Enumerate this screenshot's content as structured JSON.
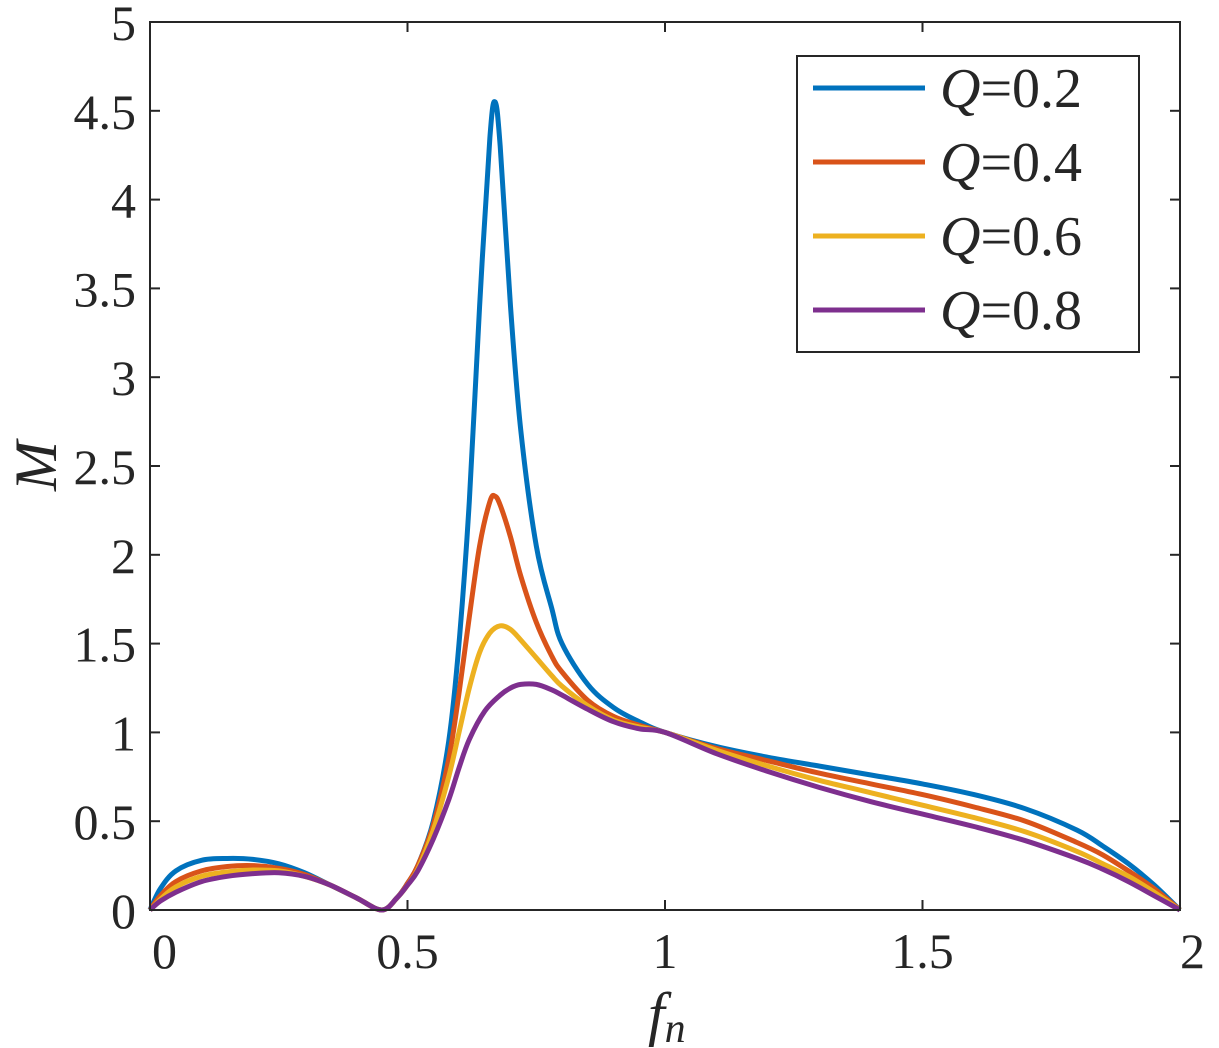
{
  "chart_data": {
    "type": "line",
    "xlabel": "f",
    "xlabel_sub": "n",
    "ylabel": "M",
    "xlim": [
      0,
      2
    ],
    "ylim": [
      0,
      5
    ],
    "xticks": [
      0,
      0.5,
      1,
      1.5,
      2
    ],
    "xtick_labels": [
      "0",
      "0.5",
      "1",
      "1.5",
      "2"
    ],
    "yticks": [
      0,
      0.5,
      1,
      1.5,
      2,
      2.5,
      3,
      3.5,
      4,
      4.5,
      5
    ],
    "ytick_labels": [
      "0",
      "0.5",
      "1",
      "1.5",
      "2",
      "2.5",
      "3",
      "3.5",
      "4",
      "4.5",
      "5"
    ],
    "grid": false,
    "legend_position": "top-right",
    "series": [
      {
        "name": "=0.2",
        "name_prefix": "Q",
        "color": "#0072BD",
        "x": [
          0,
          0.02,
          0.05,
          0.1,
          0.15,
          0.2,
          0.25,
          0.3,
          0.35,
          0.4,
          0.45,
          0.48,
          0.5,
          0.52,
          0.55,
          0.58,
          0.6,
          0.62,
          0.64,
          0.66,
          0.67,
          0.68,
          0.7,
          0.72,
          0.75,
          0.78,
          0.8,
          0.85,
          0.9,
          0.95,
          1.0,
          1.1,
          1.2,
          1.3,
          1.4,
          1.5,
          1.6,
          1.7,
          1.8,
          1.85,
          1.9,
          1.95,
          2.0
        ],
        "y": [
          0,
          0.12,
          0.22,
          0.28,
          0.29,
          0.285,
          0.26,
          0.21,
          0.14,
          0.07,
          0,
          0.07,
          0.15,
          0.25,
          0.5,
          0.95,
          1.5,
          2.3,
          3.4,
          4.35,
          4.55,
          4.3,
          3.4,
          2.7,
          2.05,
          1.7,
          1.5,
          1.27,
          1.14,
          1.06,
          1.0,
          0.92,
          0.86,
          0.81,
          0.76,
          0.71,
          0.65,
          0.57,
          0.45,
          0.36,
          0.26,
          0.14,
          0
        ]
      },
      {
        "name": "=0.4",
        "name_prefix": "Q",
        "color": "#D95319",
        "x": [
          0,
          0.02,
          0.05,
          0.1,
          0.15,
          0.2,
          0.25,
          0.3,
          0.35,
          0.4,
          0.45,
          0.48,
          0.5,
          0.52,
          0.55,
          0.58,
          0.6,
          0.62,
          0.64,
          0.66,
          0.67,
          0.68,
          0.7,
          0.72,
          0.75,
          0.78,
          0.8,
          0.85,
          0.9,
          0.95,
          1.0,
          1.1,
          1.2,
          1.3,
          1.4,
          1.5,
          1.6,
          1.7,
          1.8,
          1.85,
          1.9,
          1.95,
          2.0
        ],
        "y": [
          0,
          0.08,
          0.16,
          0.22,
          0.245,
          0.25,
          0.235,
          0.2,
          0.14,
          0.07,
          0,
          0.07,
          0.15,
          0.25,
          0.48,
          0.85,
          1.22,
          1.65,
          2.05,
          2.3,
          2.33,
          2.28,
          2.1,
          1.88,
          1.62,
          1.43,
          1.34,
          1.18,
          1.09,
          1.04,
          1.0,
          0.91,
          0.84,
          0.77,
          0.71,
          0.65,
          0.58,
          0.5,
          0.38,
          0.31,
          0.22,
          0.12,
          0
        ]
      },
      {
        "name": "=0.6",
        "name_prefix": "Q",
        "color": "#EDB120",
        "x": [
          0,
          0.02,
          0.05,
          0.1,
          0.15,
          0.2,
          0.25,
          0.3,
          0.35,
          0.4,
          0.45,
          0.48,
          0.5,
          0.52,
          0.55,
          0.58,
          0.6,
          0.62,
          0.64,
          0.66,
          0.68,
          0.7,
          0.72,
          0.75,
          0.78,
          0.8,
          0.85,
          0.9,
          0.95,
          1.0,
          1.1,
          1.2,
          1.3,
          1.4,
          1.5,
          1.6,
          1.7,
          1.8,
          1.85,
          1.9,
          1.95,
          2.0
        ],
        "y": [
          0,
          0.06,
          0.13,
          0.19,
          0.215,
          0.225,
          0.22,
          0.19,
          0.14,
          0.07,
          0,
          0.07,
          0.14,
          0.23,
          0.45,
          0.75,
          1.0,
          1.25,
          1.45,
          1.56,
          1.6,
          1.58,
          1.52,
          1.42,
          1.32,
          1.26,
          1.15,
          1.07,
          1.03,
          1.0,
          0.9,
          0.81,
          0.73,
          0.66,
          0.59,
          0.52,
          0.44,
          0.33,
          0.26,
          0.19,
          0.1,
          0
        ]
      },
      {
        "name": "=0.8",
        "name_prefix": "Q",
        "color": "#7E2F8E",
        "x": [
          0,
          0.02,
          0.05,
          0.1,
          0.15,
          0.2,
          0.25,
          0.3,
          0.35,
          0.4,
          0.45,
          0.48,
          0.5,
          0.52,
          0.55,
          0.58,
          0.6,
          0.62,
          0.65,
          0.68,
          0.7,
          0.72,
          0.75,
          0.78,
          0.8,
          0.85,
          0.9,
          0.95,
          1.0,
          1.1,
          1.2,
          1.3,
          1.4,
          1.5,
          1.6,
          1.7,
          1.8,
          1.85,
          1.9,
          1.95,
          2.0
        ],
        "y": [
          0,
          0.05,
          0.1,
          0.16,
          0.19,
          0.205,
          0.21,
          0.19,
          0.14,
          0.07,
          0,
          0.07,
          0.14,
          0.22,
          0.4,
          0.62,
          0.8,
          0.96,
          1.12,
          1.21,
          1.25,
          1.27,
          1.27,
          1.24,
          1.21,
          1.13,
          1.06,
          1.02,
          1.0,
          0.88,
          0.78,
          0.69,
          0.61,
          0.54,
          0.47,
          0.39,
          0.29,
          0.23,
          0.16,
          0.08,
          0
        ]
      }
    ]
  }
}
